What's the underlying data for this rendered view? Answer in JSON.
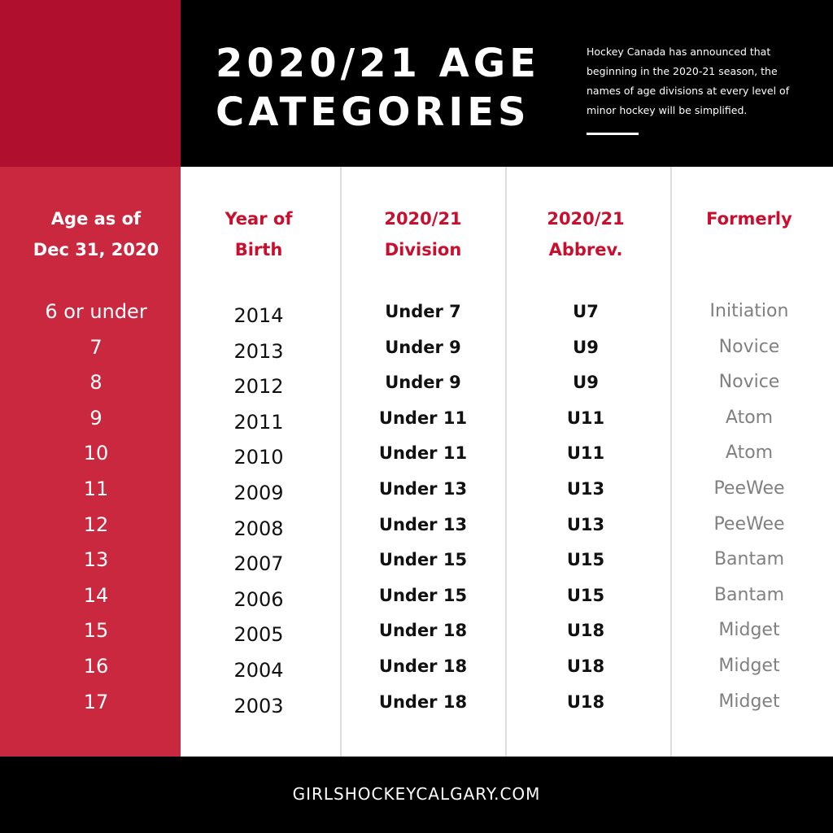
{
  "header": {
    "title_lines": [
      "2020/21 AGE",
      "CATEGORIES"
    ],
    "description": "Hockey Canada has announced that beginning in the 2020-21 season, the names of age divisions at every level of minor hockey will be simplified."
  },
  "table": {
    "headers": [
      [
        "Age  as of",
        "Dec 31, 2020"
      ],
      [
        "Year of",
        "Birth"
      ],
      [
        "2020/21",
        "Division"
      ],
      [
        "2020/21",
        "Abbrev."
      ],
      [
        "Formerly"
      ]
    ],
    "rows": [
      [
        "6 or under",
        "2014",
        "Under 7",
        "U7",
        "Initiation"
      ],
      [
        "7",
        "2013",
        "Under 9",
        "U9",
        "Novice"
      ],
      [
        "8",
        "2012",
        "Under 9",
        "U9",
        "Novice"
      ],
      [
        "9",
        "2011",
        "Under 11",
        "U11",
        "Atom"
      ],
      [
        "10",
        "2010",
        "Under 11",
        "U11",
        "Atom"
      ],
      [
        "11",
        "2009",
        "Under 13",
        "U13",
        "PeeWee"
      ],
      [
        "12",
        "2008",
        "Under 13",
        "U13",
        "PeeWee"
      ],
      [
        "13",
        "2007",
        "Under 15",
        "U15",
        "Bantam"
      ],
      [
        "14",
        "2006",
        "Under 15",
        "U15",
        "Bantam"
      ],
      [
        "15",
        "2005",
        "Under 18",
        "U18",
        "Midget"
      ],
      [
        "16",
        "2004",
        "Under 18",
        "U18",
        "Midget"
      ],
      [
        "17",
        "2003",
        "Under 18",
        "U18",
        "Midget"
      ]
    ]
  },
  "footer": {
    "text": "GIRLSHOCKEYCALGARY.COM"
  }
}
